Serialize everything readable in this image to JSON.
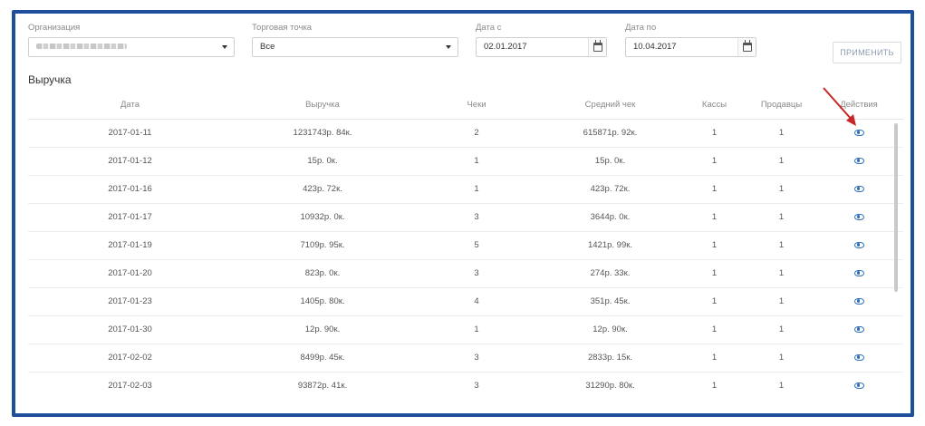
{
  "filters": {
    "organization": {
      "label": "Организация",
      "value": ""
    },
    "outlet": {
      "label": "Торговая точка",
      "value": "Все"
    },
    "date_from": {
      "label": "Дата с",
      "value": "02.01.2017"
    },
    "date_to": {
      "label": "Дата по",
      "value": "10.04.2017"
    },
    "apply_label": "ПРИМЕНИТЬ"
  },
  "section_title": "Выручка",
  "table": {
    "headers": {
      "date": "Дата",
      "revenue": "Выручка",
      "checks": "Чеки",
      "avg_check": "Средний чек",
      "pos": "Кассы",
      "sellers": "Продавцы",
      "actions": "Действия"
    },
    "rows": [
      {
        "date": "2017-01-11",
        "revenue": "1231743р. 84к.",
        "checks": "2",
        "avg_check": "615871р. 92к.",
        "pos": "1",
        "sellers": "1"
      },
      {
        "date": "2017-01-12",
        "revenue": "15р. 0к.",
        "checks": "1",
        "avg_check": "15р. 0к.",
        "pos": "1",
        "sellers": "1"
      },
      {
        "date": "2017-01-16",
        "revenue": "423р. 72к.",
        "checks": "1",
        "avg_check": "423р. 72к.",
        "pos": "1",
        "sellers": "1"
      },
      {
        "date": "2017-01-17",
        "revenue": "10932р. 0к.",
        "checks": "3",
        "avg_check": "3644р. 0к.",
        "pos": "1",
        "sellers": "1"
      },
      {
        "date": "2017-01-19",
        "revenue": "7109р. 95к.",
        "checks": "5",
        "avg_check": "1421р. 99к.",
        "pos": "1",
        "sellers": "1"
      },
      {
        "date": "2017-01-20",
        "revenue": "823р. 0к.",
        "checks": "3",
        "avg_check": "274р. 33к.",
        "pos": "1",
        "sellers": "1"
      },
      {
        "date": "2017-01-23",
        "revenue": "1405р. 80к.",
        "checks": "4",
        "avg_check": "351р. 45к.",
        "pos": "1",
        "sellers": "1"
      },
      {
        "date": "2017-01-30",
        "revenue": "12р. 90к.",
        "checks": "1",
        "avg_check": "12р. 90к.",
        "pos": "1",
        "sellers": "1"
      },
      {
        "date": "2017-02-02",
        "revenue": "8499р. 45к.",
        "checks": "3",
        "avg_check": "2833р. 15к.",
        "pos": "1",
        "sellers": "1"
      },
      {
        "date": "2017-02-03",
        "revenue": "93872р. 41к.",
        "checks": "3",
        "avg_check": "31290р. 80к.",
        "pos": "1",
        "sellers": "1"
      }
    ]
  },
  "icons": {
    "row_action": "eye-icon",
    "date_picker": "calendar-icon",
    "select": "chevron-down-icon",
    "annotation": "red-arrow"
  },
  "colors": {
    "frame": "#1f4f9c",
    "icon": "#2e6fb7",
    "arrow": "#c62828"
  }
}
